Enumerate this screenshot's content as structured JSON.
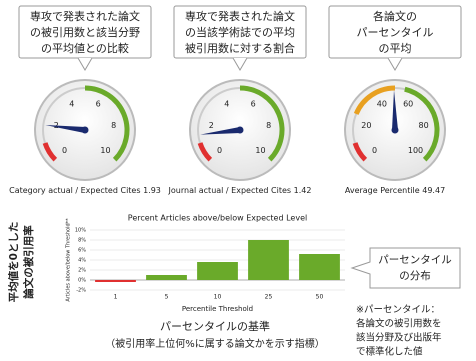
{
  "chart_data": [
    {
      "type": "gauge",
      "callout": [
        "専攻で発表された論文",
        "の被引用数と該当分野",
        "の平均値との比較"
      ],
      "caption": "Category actual / Expected Cites",
      "value": 1.93,
      "ylim": [
        0,
        10
      ],
      "yticks": [
        0,
        2,
        4,
        6,
        8,
        10
      ],
      "bands": [
        {
          "from": 0,
          "to": 1,
          "color": "#e03030"
        },
        {
          "from": 5,
          "to": 10,
          "color": "#6aaa2a"
        }
      ],
      "needle_color": "#1a2a6e"
    },
    {
      "type": "gauge",
      "callout": [
        "専攻で発表された論文",
        "の当該学術誌での平均",
        "被引用数に対する割合"
      ],
      "caption": "Journal actual / Expected Cites",
      "value": 1.42,
      "ylim": [
        0,
        10
      ],
      "yticks": [
        0,
        2,
        4,
        6,
        8,
        10
      ],
      "bands": [
        {
          "from": 0,
          "to": 1,
          "color": "#e03030"
        },
        {
          "from": 5,
          "to": 10,
          "color": "#6aaa2a"
        }
      ],
      "needle_color": "#1a2a6e"
    },
    {
      "type": "gauge",
      "callout": [
        "各論文の",
        "パーセンタイル",
        "の平均"
      ],
      "caption": "Average Percentile",
      "value": 49.47,
      "ylim": [
        0,
        100
      ],
      "yticks": [
        0,
        20,
        40,
        60,
        80,
        100
      ],
      "bands": [
        {
          "from": 0,
          "to": 10,
          "color": "#e03030"
        },
        {
          "from": 25,
          "to": 50,
          "color": "#e8a020"
        },
        {
          "from": 55,
          "to": 100,
          "color": "#6aaa2a"
        }
      ],
      "needle_color": "#1a2a6e"
    },
    {
      "type": "bar",
      "title": "Percent Articles above/below Expected Level",
      "y_label": "Articles above/below Threshold**",
      "x_label": "Percentile Threshold",
      "categories": [
        "1",
        "5",
        "10",
        "25",
        "50"
      ],
      "values": [
        -0.4,
        1,
        3.6,
        8,
        5.2
      ],
      "colors": [
        "#e03030",
        "#6aaa2a",
        "#6aaa2a",
        "#6aaa2a",
        "#6aaa2a"
      ],
      "ylim": [
        -2,
        10
      ],
      "yticks": [
        {
          "value": -2,
          "label": "-2%"
        },
        {
          "value": 0,
          "label": "0%"
        },
        {
          "value": 2,
          "label": "2%"
        },
        {
          "value": 4,
          "label": "4%"
        },
        {
          "value": 6,
          "label": "6%"
        },
        {
          "value": 8,
          "label": "8%"
        },
        {
          "value": 10,
          "label": "10%"
        }
      ],
      "grid": true
    }
  ],
  "annotations": {
    "left_label": [
      "平均値を0とした",
      "論文の被引用率"
    ],
    "distribution_callout": [
      "パーセンタイル",
      "の分布"
    ],
    "basis": [
      "パーセンタイルの基準",
      "（被引用率上位何%に属する論文かを示す指標）"
    ],
    "note": [
      "※パーセンタイル：",
      "各論文の被引用数を",
      "該当分野及び出版年",
      "で標準化した値"
    ]
  }
}
